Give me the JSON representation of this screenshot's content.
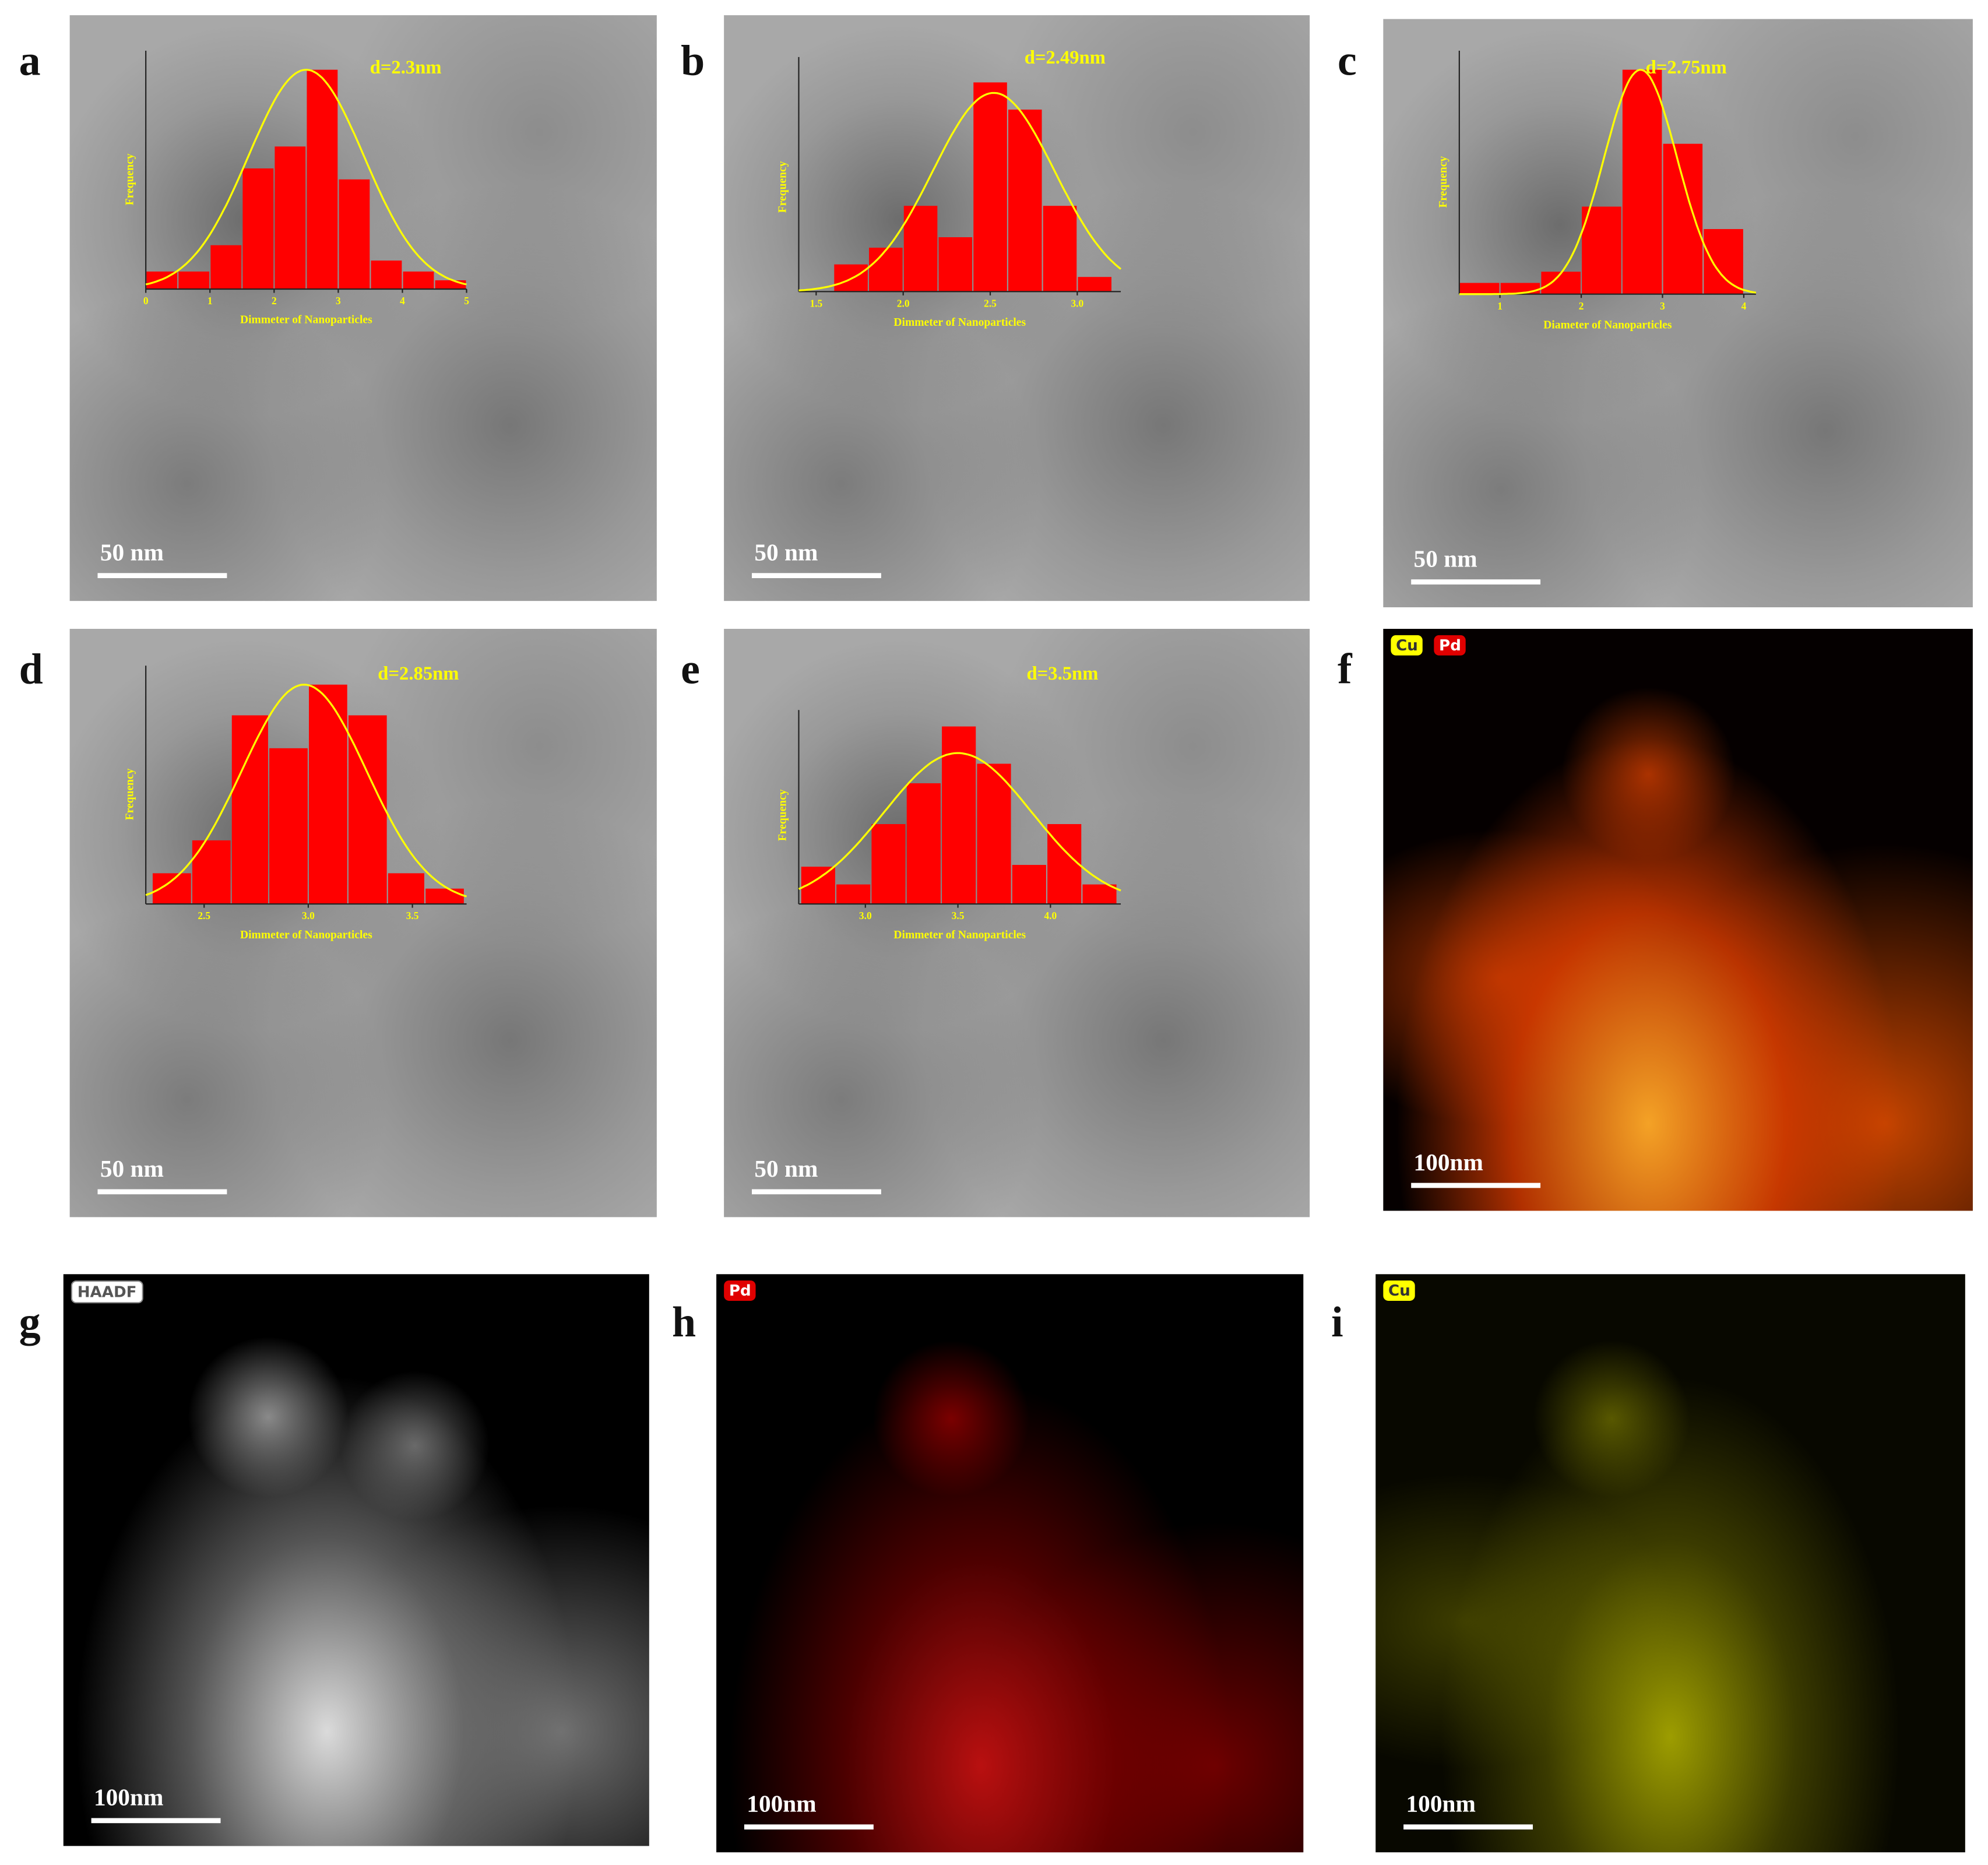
{
  "panels": [
    {
      "label": "a",
      "scale_bar": "50 nm"
    },
    {
      "label": "b",
      "scale_bar": "50 nm"
    },
    {
      "label": "c",
      "scale_bar": "50 nm"
    },
    {
      "label": "d",
      "scale_bar": "50 nm"
    },
    {
      "label": "e",
      "scale_bar": "50 nm"
    },
    {
      "label": "f",
      "scale_bar": "100nm",
      "badges": [
        "Cu",
        "Pd"
      ]
    },
    {
      "label": "g",
      "scale_bar": "100nm",
      "badges": [
        "HAADF"
      ]
    },
    {
      "label": "h",
      "scale_bar": "100nm",
      "badges": [
        "Pd"
      ]
    },
    {
      "label": "i",
      "scale_bar": "100nm",
      "badges": [
        "Cu"
      ]
    }
  ],
  "chart_data": [
    {
      "type": "histogram",
      "annotation": "d=2.3nm",
      "x_label": "Dimmeter of Nanoparticles",
      "y_label": "Frequency",
      "bins": [
        0,
        0.5,
        1,
        1.5,
        2,
        2.5,
        3,
        3.5,
        4,
        4.5,
        5
      ],
      "values": [
        0.8,
        0.8,
        2,
        5.5,
        6.5,
        10,
        5,
        1.3,
        0.8,
        0.4
      ],
      "color": "#ff0000",
      "xlim": [
        0,
        5
      ],
      "ylim": [
        0,
        10
      ],
      "xticks": [
        0,
        1,
        2,
        3,
        4,
        5
      ],
      "fit": {
        "mean": 2.5,
        "sd": 0.9,
        "peak": 10,
        "color": "#ffff00"
      }
    },
    {
      "type": "histogram",
      "annotation": "d=2.49nm",
      "x_label": "Dimmeter of Nanoparticles",
      "y_label": "Frequency",
      "bins": [
        1.6,
        1.8,
        2.0,
        2.2,
        2.4,
        2.6,
        2.8,
        3.0,
        3.2
      ],
      "values": [
        1.3,
        2.1,
        4.1,
        2.6,
        10,
        8.7,
        4.1,
        0.7
      ],
      "color": "#ff0000",
      "xlim": [
        1.4,
        3.25
      ],
      "ylim": [
        0,
        10
      ],
      "xticks": [
        1.5,
        {
          "value": 2,
          "label": "2.0"
        },
        2.5,
        {
          "value": 3,
          "label": "3.0"
        }
      ],
      "fit": {
        "mean": 2.52,
        "sd": 0.35,
        "peak": 9.5,
        "color": "#ffff00"
      }
    },
    {
      "type": "histogram",
      "annotation": "d=2.75nm",
      "x_label": "Diameter of Nanoparticles",
      "y_label": "Frequency",
      "bins": [
        0.5,
        1,
        1.5,
        2,
        2.5,
        3,
        3.5,
        4
      ],
      "values": [
        0.5,
        0.5,
        1,
        3.9,
        10,
        6.7,
        2.9
      ],
      "color": "#ff0000",
      "xlim": [
        0.5,
        4.15
      ],
      "ylim": [
        0,
        10
      ],
      "xticks": [
        1,
        2,
        3,
        4
      ],
      "fit": {
        "mean": 2.73,
        "sd": 0.45,
        "peak": 10,
        "color": "#ffff00"
      }
    },
    {
      "type": "histogram",
      "annotation": "d=2.85nm",
      "x_label": "Dimmeter of Nanoparticles",
      "y_label": "Frequency",
      "bins": [
        2.25,
        2.44,
        2.63,
        2.81,
        3.0,
        3.19,
        3.38,
        3.56,
        3.75
      ],
      "values": [
        1.4,
        2.9,
        8.6,
        7.1,
        10,
        8.6,
        1.4,
        0.7
      ],
      "color": "#ff0000",
      "xlim": [
        2.22,
        3.76
      ],
      "ylim": [
        0,
        10
      ],
      "xticks": [
        2.5,
        {
          "value": 3,
          "label": "3.0"
        },
        3.5
      ],
      "fit": {
        "mean": 2.98,
        "sd": 0.3,
        "peak": 10,
        "color": "#ffff00"
      }
    },
    {
      "type": "histogram",
      "annotation": "d=3.5nm",
      "x_label": "Dimmeter of Nanoparticles",
      "y_label": "Frequency",
      "bins": [
        2.65,
        2.84,
        3.03,
        3.22,
        3.41,
        3.6,
        3.79,
        3.98,
        4.17,
        4.36
      ],
      "values": [
        2.1,
        1.1,
        4.5,
        6.8,
        10,
        7.9,
        2.2,
        4.5,
        1.1
      ],
      "color": "#ff0000",
      "xlim": [
        2.64,
        4.38
      ],
      "ylim": [
        0,
        10
      ],
      "xticks": [
        {
          "value": 3,
          "label": "3.0"
        },
        3.5,
        {
          "value": 4,
          "label": "4.0"
        }
      ],
      "fit": {
        "mean": 3.5,
        "sd": 0.4,
        "peak": 8.5,
        "color": "#ffff00"
      }
    }
  ]
}
